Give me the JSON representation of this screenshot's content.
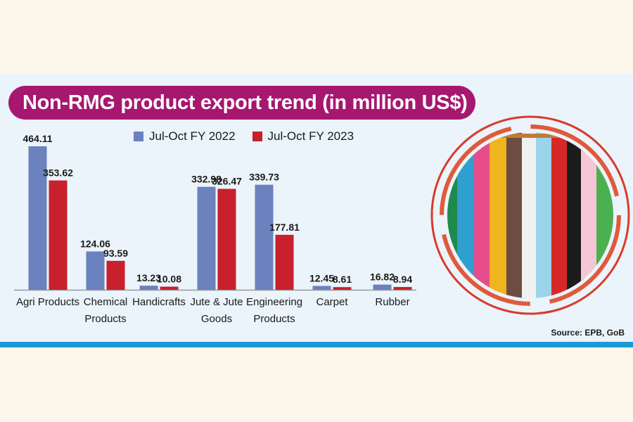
{
  "title": "Non-RMG product export trend (in million US$)",
  "source": "Source: EPB, GoB",
  "colors": {
    "fy2022": "#6b82bf",
    "fy2023": "#c8202c",
    "title_bg": "#a6176f",
    "stripe": "#1d9ad6"
  },
  "chart_data": {
    "type": "bar",
    "title": "Non-RMG product export trend (in million US$)",
    "categories": [
      [
        "Agri Products"
      ],
      [
        "Chemical",
        "Products"
      ],
      [
        "Handicrafts"
      ],
      [
        "Jute & Jute",
        "Goods"
      ],
      [
        "Engineering",
        "Products"
      ],
      [
        "Carpet"
      ],
      [
        "Rubber"
      ]
    ],
    "series": [
      {
        "name": "Jul-Oct FY 2022",
        "values": [
          464.11,
          124.06,
          13.23,
          332.98,
          339.73,
          12.45,
          16.82
        ]
      },
      {
        "name": "Jul-Oct FY 2023",
        "values": [
          353.62,
          93.59,
          10.08,
          326.47,
          177.81,
          8.61,
          8.94
        ]
      }
    ],
    "value_labels": [
      [
        "464.11",
        "124.06",
        "13.23",
        "332.98",
        "339.73",
        "12.45",
        "16.82"
      ],
      [
        "353.62",
        "93.59",
        "10.08",
        "326.47",
        "177.81",
        "8.61",
        "8.94"
      ]
    ],
    "grid": false,
    "legend_position": "top"
  }
}
